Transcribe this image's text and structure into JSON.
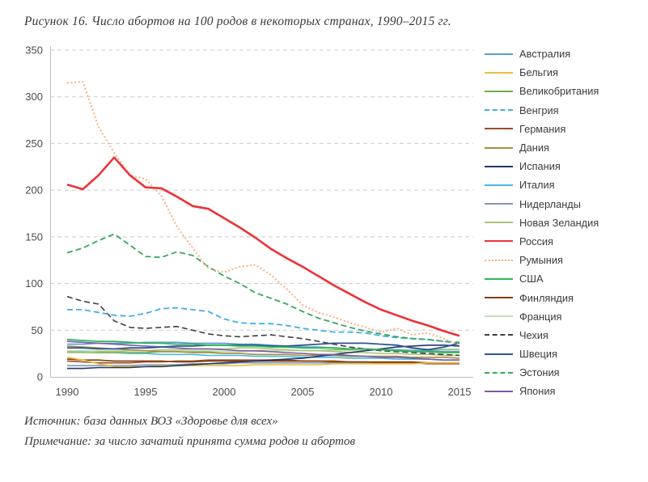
{
  "title": "Рисунок 16. Число абортов на 100 родов в некоторых странах, 1990–2015 гг.",
  "source_line": "Источник: база данных ВОЗ «Здоровье для всех»",
  "note_line": "Примечание: за число зачатий принята сумма родов и абортов",
  "chart_data": {
    "type": "line",
    "title": "Число абортов на 100 родов в некоторых странах, 1990–2015 гг.",
    "xlabel": "",
    "ylabel": "",
    "ylim": [
      0,
      350
    ],
    "grid": "horizontal-dashed",
    "legend_position": "right",
    "grid_color": "#c9c9c9",
    "axis_color": "#bfbfbf",
    "x": [
      1990,
      1991,
      1992,
      1993,
      1994,
      1995,
      1996,
      1997,
      1998,
      1999,
      2000,
      2001,
      2002,
      2003,
      2004,
      2005,
      2006,
      2007,
      2008,
      2009,
      2010,
      2011,
      2012,
      2013,
      2014,
      2015
    ],
    "xticks": [
      1990,
      1995,
      2000,
      2005,
      2010,
      2015
    ],
    "yticks": [
      0,
      50,
      100,
      150,
      200,
      250,
      300,
      350
    ],
    "series": [
      {
        "name": "Австралия",
        "color": "#5B9BD5",
        "style": "solid",
        "width": 1.6,
        "values": [
          35,
          35,
          36,
          36,
          36,
          37,
          37,
          37,
          36,
          36,
          36,
          35,
          35,
          34,
          33,
          32,
          32,
          31,
          30,
          30,
          29,
          29,
          28,
          28,
          27,
          27
        ]
      },
      {
        "name": "Бельгия",
        "color": "#E7C13F",
        "style": "solid",
        "width": 1.6,
        "values": [
          21,
          18,
          14,
          11,
          11,
          11,
          12,
          12,
          12,
          12,
          12,
          12,
          13,
          13,
          13,
          13,
          13,
          14,
          14,
          14,
          14,
          14,
          14,
          15,
          15,
          15
        ]
      },
      {
        "name": "Великобритания",
        "color": "#70AD47",
        "style": "solid",
        "width": 1.6,
        "values": [
          27,
          26,
          26,
          26,
          26,
          26,
          27,
          27,
          27,
          27,
          27,
          27,
          28,
          28,
          28,
          28,
          28,
          29,
          29,
          29,
          29,
          29,
          29,
          29,
          29,
          29
        ]
      },
      {
        "name": "Венгрия",
        "color": "#41AEE8",
        "style": "dashed",
        "width": 1.8,
        "values": [
          72,
          72,
          69,
          66,
          65,
          68,
          73,
          74,
          72,
          70,
          62,
          58,
          57,
          57,
          55,
          52,
          50,
          48,
          48,
          47,
          44,
          42,
          41,
          40,
          38,
          36
        ]
      },
      {
        "name": "Германия",
        "color": "#9E4B28",
        "style": "solid",
        "width": 1.6,
        "values": [
          17,
          16,
          15,
          15,
          15,
          16,
          16,
          17,
          17,
          18,
          18,
          18,
          18,
          18,
          18,
          17,
          17,
          16,
          16,
          16,
          15,
          15,
          15,
          14,
          14,
          14
        ]
      },
      {
        "name": "Дания",
        "color": "#A78D3B",
        "style": "solid",
        "width": 1.6,
        "values": [
          33,
          32,
          31,
          30,
          29,
          28,
          27,
          27,
          26,
          26,
          25,
          25,
          24,
          24,
          24,
          23,
          23,
          23,
          22,
          22,
          22,
          22,
          21,
          21,
          21,
          20
        ]
      },
      {
        "name": "Испания",
        "color": "#1F3864",
        "style": "solid",
        "width": 1.6,
        "values": [
          9,
          9,
          10,
          10,
          10,
          11,
          11,
          12,
          13,
          14,
          15,
          16,
          17,
          18,
          19,
          20,
          22,
          24,
          26,
          28,
          30,
          32,
          33,
          34,
          34,
          33
        ]
      },
      {
        "name": "Италия",
        "color": "#45B8E8",
        "style": "solid",
        "width": 1.6,
        "values": [
          28,
          27,
          26,
          26,
          25,
          25,
          24,
          24,
          24,
          23,
          23,
          23,
          22,
          22,
          22,
          21,
          21,
          21,
          20,
          20,
          20,
          19,
          19,
          19,
          18,
          18
        ]
      },
      {
        "name": "Нидерланды",
        "color": "#8497B0",
        "style": "solid",
        "width": 1.6,
        "values": [
          12,
          12,
          12,
          12,
          12,
          13,
          13,
          13,
          14,
          14,
          14,
          15,
          15,
          15,
          15,
          15,
          15,
          15,
          15,
          15,
          15,
          15,
          15,
          15,
          15,
          15
        ]
      },
      {
        "name": "Новая Зеландия",
        "color": "#A9C47F",
        "style": "solid",
        "width": 1.6,
        "values": [
          26,
          26,
          27,
          27,
          28,
          28,
          29,
          29,
          30,
          30,
          30,
          31,
          31,
          30,
          29,
          28,
          28,
          27,
          26,
          26,
          25,
          25,
          24,
          24,
          23,
          23
        ]
      },
      {
        "name": "Россия",
        "color": "#EC3237",
        "style": "solid",
        "width": 2.6,
        "values": [
          206,
          201,
          216,
          235,
          216,
          203,
          202,
          193,
          183,
          180,
          170,
          160,
          149,
          137,
          127,
          118,
          108,
          98,
          89,
          80,
          72,
          66,
          60,
          55,
          49,
          44
        ]
      },
      {
        "name": "Румыния",
        "color": "#F4B183",
        "style": "dotted",
        "width": 2,
        "values": [
          315,
          316,
          268,
          240,
          216,
          212,
          194,
          161,
          138,
          116,
          112,
          118,
          120,
          109,
          94,
          77,
          69,
          64,
          58,
          53,
          48,
          52,
          45,
          47,
          41,
          34
        ]
      },
      {
        "name": "США",
        "color": "#2DB757",
        "style": "solid",
        "width": 1.8,
        "values": [
          40,
          39,
          38,
          38,
          37,
          36,
          36,
          35,
          35,
          34,
          34,
          33,
          33,
          32,
          32,
          31,
          31,
          31,
          30,
          30,
          29,
          28,
          27,
          27,
          26,
          26
        ]
      },
      {
        "name": "Финляндия",
        "color": "#843C0C",
        "style": "solid",
        "width": 1.6,
        "values": [
          19,
          18,
          18,
          17,
          17,
          17,
          17,
          16,
          16,
          17,
          17,
          17,
          17,
          17,
          17,
          17,
          17,
          17,
          16,
          16,
          16,
          16,
          16,
          15,
          15,
          15
        ]
      },
      {
        "name": "Франция",
        "color": "#C5E0B4",
        "style": "solid",
        "width": 1.6,
        "values": [
          28,
          28,
          28,
          28,
          28,
          28,
          28,
          28,
          28,
          28,
          27,
          27,
          27,
          28,
          28,
          28,
          28,
          28,
          28,
          29,
          29,
          29,
          29,
          30,
          30,
          30
        ]
      },
      {
        "name": "Чехия",
        "color": "#404040",
        "style": "dashed",
        "width": 1.6,
        "values": [
          86,
          81,
          78,
          60,
          53,
          52,
          53,
          54,
          50,
          46,
          44,
          43,
          44,
          45,
          43,
          41,
          38,
          35,
          32,
          30,
          28,
          27,
          26,
          25,
          24,
          23
        ]
      },
      {
        "name": "Швеция",
        "color": "#2F5496",
        "style": "solid",
        "width": 1.8,
        "values": [
          31,
          31,
          30,
          30,
          31,
          31,
          32,
          33,
          33,
          34,
          34,
          34,
          34,
          33,
          33,
          34,
          35,
          36,
          36,
          36,
          35,
          34,
          31,
          29,
          32,
          36
        ]
      },
      {
        "name": "Эстония",
        "color": "#35A85C",
        "style": "dashed",
        "width": 1.8,
        "values": [
          133,
          138,
          146,
          153,
          141,
          129,
          128,
          134,
          130,
          118,
          108,
          100,
          90,
          84,
          78,
          70,
          63,
          58,
          53,
          49,
          46,
          43,
          41,
          40,
          38,
          37
        ]
      },
      {
        "name": "Япония",
        "color": "#7D5BA6",
        "style": "solid",
        "width": 1.6,
        "values": [
          38,
          37,
          36,
          35,
          34,
          33,
          32,
          31,
          30,
          30,
          29,
          28,
          28,
          27,
          26,
          25,
          24,
          24,
          23,
          22,
          21,
          21,
          20,
          19,
          18,
          18
        ]
      }
    ]
  }
}
